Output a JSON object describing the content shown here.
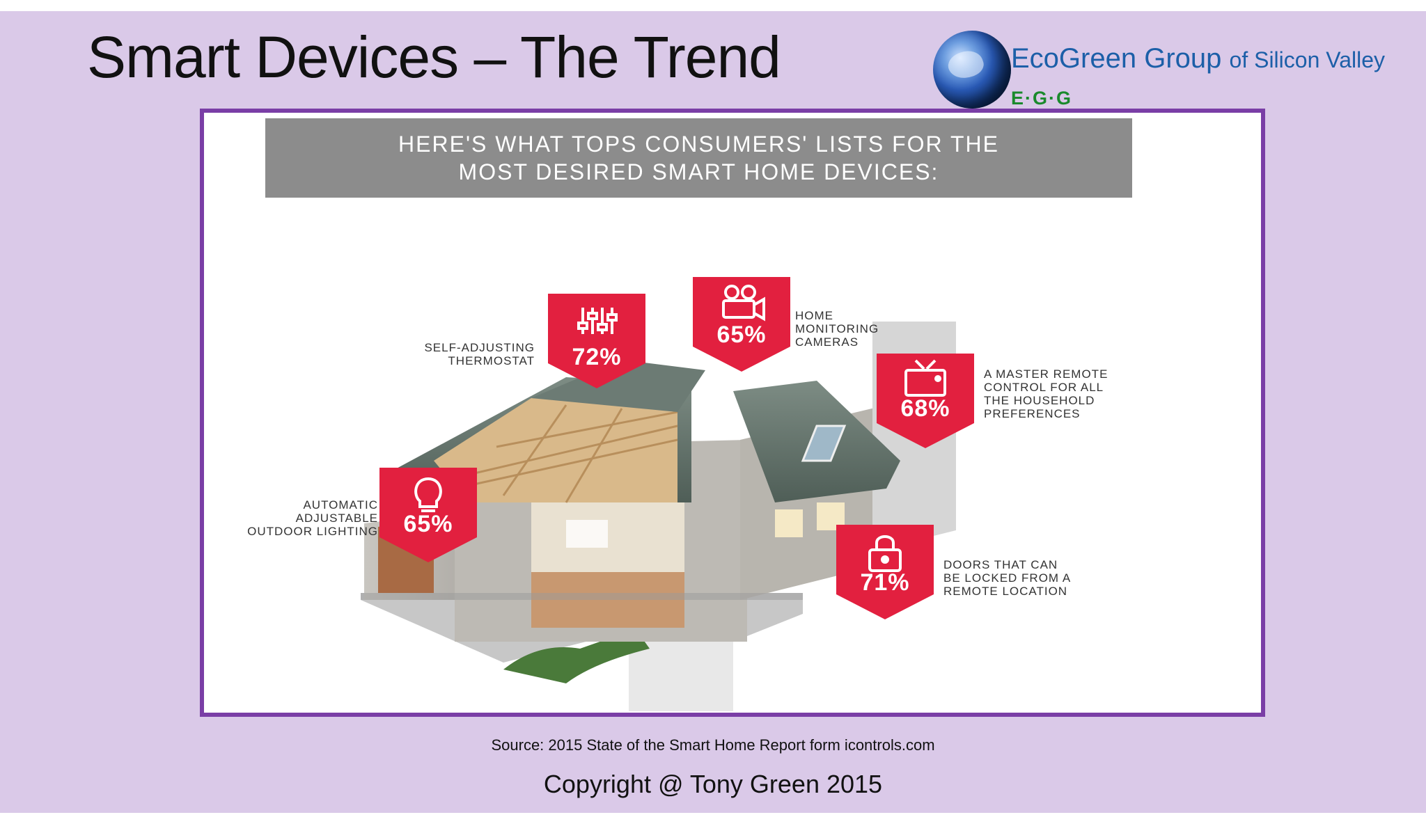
{
  "slide": {
    "title": "Smart Devices – The Trend",
    "logo": {
      "name": "EcoGreen Group",
      "suffix": "of Silicon Valley",
      "short": "E·G·G"
    },
    "infographic": {
      "banner_line1": "HERE'S WHAT TOPS CONSUMERS' LISTS FOR THE",
      "banner_line2": "MOST DESIRED SMART HOME DEVICES:",
      "stats": [
        {
          "value": "72%",
          "label_lines": [
            "SELF-ADJUSTING",
            "THERMOSTAT"
          ],
          "icon": "sliders-icon"
        },
        {
          "value": "65%",
          "label_lines": [
            "HOME",
            "MONITORING",
            "CAMERAS"
          ],
          "icon": "video-camera-icon"
        },
        {
          "value": "68%",
          "label_lines": [
            "A MASTER REMOTE",
            "CONTROL FOR ALL",
            "THE HOUSEHOLD",
            "PREFERENCES"
          ],
          "icon": "tv-icon"
        },
        {
          "value": "65%",
          "label_lines": [
            "AUTOMATIC",
            "ADJUSTABLE",
            "OUTDOOR LIGHTING"
          ],
          "icon": "lightbulb-icon"
        },
        {
          "value": "71%",
          "label_lines": [
            "DOORS THAT CAN",
            "BE LOCKED FROM A",
            "REMOTE LOCATION"
          ],
          "icon": "lock-icon"
        }
      ],
      "badge_color": "#e2203f"
    },
    "source": "Source: 2015 State of the Smart Home Report form icontrols.com",
    "copyright": "Copyright @ Tony Green 2015"
  }
}
